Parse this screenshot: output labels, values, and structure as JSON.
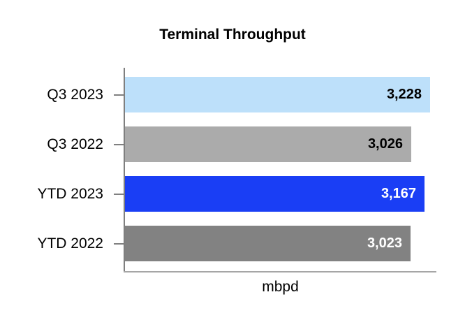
{
  "chart_data": {
    "type": "bar",
    "orientation": "horizontal",
    "title": "Terminal Throughput",
    "xlabel": "mbpd",
    "categories": [
      "Q3 2023",
      "Q3 2022",
      "YTD 2023",
      "YTD 2022"
    ],
    "values": [
      3228,
      3026,
      3167,
      3023
    ],
    "value_labels": [
      "3,228",
      "3,026",
      "3,167",
      "3,023"
    ],
    "bar_colors": [
      "#BDE0FA",
      "#ABABAB",
      "#1A3EF5",
      "#828282"
    ],
    "value_label_colors": [
      "#000000",
      "#000000",
      "#FFFFFF",
      "#FFFFFF"
    ],
    "xlim": [
      0,
      3300
    ],
    "grid": false,
    "legend": false,
    "value_labels_position": "inside-end"
  },
  "colors": {
    "background": "#FFFFFF",
    "y_axis_line": "#7F7F7F",
    "x_axis_line": "#A6A6A6",
    "tick": "#808080",
    "text": "#000000"
  }
}
